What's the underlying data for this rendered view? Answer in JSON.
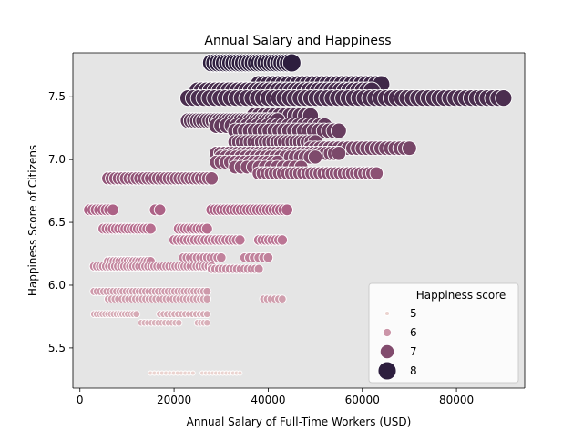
{
  "chart_data": {
    "type": "scatter",
    "title": "Annual Salary and Happiness",
    "xlabel": "Annual Salary of Full-Time Workers (USD)",
    "ylabel": "Happiness Score of Citizens",
    "xlim": [
      -1500,
      94500
    ],
    "ylim": [
      5.18,
      7.85
    ],
    "xticks": [
      {
        "v": 0,
        "label": "0"
      },
      {
        "v": 20000,
        "label": "20000"
      },
      {
        "v": 40000,
        "label": "40000"
      },
      {
        "v": 60000,
        "label": "60000"
      },
      {
        "v": 80000,
        "label": "80000"
      }
    ],
    "yticks": [
      {
        "v": 5.5,
        "label": "5.5"
      },
      {
        "v": 6.0,
        "label": "6.0"
      },
      {
        "v": 6.5,
        "label": "6.5"
      },
      {
        "v": 7.0,
        "label": "7.0"
      },
      {
        "v": 7.5,
        "label": "7.5"
      }
    ],
    "grid": false,
    "background": "#e5e5e5",
    "hue_scale": {
      "min": 5.3,
      "max": 7.77,
      "low_color": "#ebd3cf",
      "mid_color": "#b3668a",
      "high_color": "#2d1e3e"
    },
    "legend": {
      "title": "Happiness score",
      "placement": "lower right",
      "entries": [
        {
          "label": "5",
          "value": 5
        },
        {
          "label": "6",
          "value": 6
        },
        {
          "label": "7",
          "value": 7
        },
        {
          "label": "8",
          "value": 8
        }
      ]
    },
    "rows": [
      {
        "y": 7.77,
        "x_start": 28000,
        "x_end": 45000,
        "count": 26
      },
      {
        "y": 7.6,
        "x_start": 38000,
        "x_end": 64000,
        "count": 26
      },
      {
        "y": 7.55,
        "x_start": 25000,
        "x_end": 62000,
        "count": 40
      },
      {
        "y": 7.49,
        "x_start": 23000,
        "x_end": 90000,
        "count": 60
      },
      {
        "y": 7.35,
        "x_start": 37000,
        "x_end": 49000,
        "count": 12
      },
      {
        "y": 7.31,
        "x_start": 23000,
        "x_end": 42000,
        "count": 30
      },
      {
        "y": 7.27,
        "x_start": 29000,
        "x_end": 52000,
        "count": 22
      },
      {
        "y": 7.23,
        "x_start": 33000,
        "x_end": 55000,
        "count": 22
      },
      {
        "y": 7.14,
        "x_start": 33000,
        "x_end": 50000,
        "count": 22
      },
      {
        "y": 7.09,
        "x_start": 49000,
        "x_end": 70000,
        "count": 22
      },
      {
        "y": 7.05,
        "x_start": 29000,
        "x_end": 55000,
        "count": 30
      },
      {
        "y": 7.02,
        "x_start": 30000,
        "x_end": 50000,
        "count": 20
      },
      {
        "y": 6.98,
        "x_start": 29000,
        "x_end": 42000,
        "count": 14
      },
      {
        "y": 6.94,
        "x_start": 33000,
        "x_end": 47000,
        "count": 12
      },
      {
        "y": 6.89,
        "x_start": 38000,
        "x_end": 63000,
        "count": 30
      },
      {
        "y": 6.85,
        "x_start": 6000,
        "x_end": 28000,
        "count": 30
      },
      {
        "y": 6.6,
        "x_start": 2000,
        "x_end": 7000,
        "count": 8
      },
      {
        "y": 6.6,
        "x_start": 16000,
        "x_end": 17000,
        "count": 2
      },
      {
        "y": 6.6,
        "x_start": 28000,
        "x_end": 44000,
        "count": 24
      },
      {
        "y": 6.45,
        "x_start": 5000,
        "x_end": 15000,
        "count": 16
      },
      {
        "y": 6.45,
        "x_start": 21000,
        "x_end": 27000,
        "count": 10
      },
      {
        "y": 6.36,
        "x_start": 20000,
        "x_end": 34000,
        "count": 20
      },
      {
        "y": 6.36,
        "x_start": 38000,
        "x_end": 43000,
        "count": 8
      },
      {
        "y": 6.22,
        "x_start": 22000,
        "x_end": 30000,
        "count": 12
      },
      {
        "y": 6.22,
        "x_start": 35000,
        "x_end": 40000,
        "count": 6
      },
      {
        "y": 6.19,
        "x_start": 6000,
        "x_end": 15000,
        "count": 16
      },
      {
        "y": 6.15,
        "x_start": 3000,
        "x_end": 28000,
        "count": 40
      },
      {
        "y": 6.13,
        "x_start": 28000,
        "x_end": 38000,
        "count": 14
      },
      {
        "y": 5.95,
        "x_start": 3000,
        "x_end": 27000,
        "count": 36
      },
      {
        "y": 5.89,
        "x_start": 6000,
        "x_end": 27000,
        "count": 30
      },
      {
        "y": 5.89,
        "x_start": 39000,
        "x_end": 43000,
        "count": 6
      },
      {
        "y": 5.77,
        "x_start": 3000,
        "x_end": 12000,
        "count": 16
      },
      {
        "y": 5.77,
        "x_start": 17000,
        "x_end": 27000,
        "count": 14
      },
      {
        "y": 5.7,
        "x_start": 13000,
        "x_end": 21000,
        "count": 12
      },
      {
        "y": 5.7,
        "x_start": 25000,
        "x_end": 27000,
        "count": 4
      },
      {
        "y": 5.3,
        "x_start": 15000,
        "x_end": 24000,
        "count": 12
      },
      {
        "y": 5.3,
        "x_start": 26000,
        "x_end": 34000,
        "count": 12
      }
    ]
  }
}
